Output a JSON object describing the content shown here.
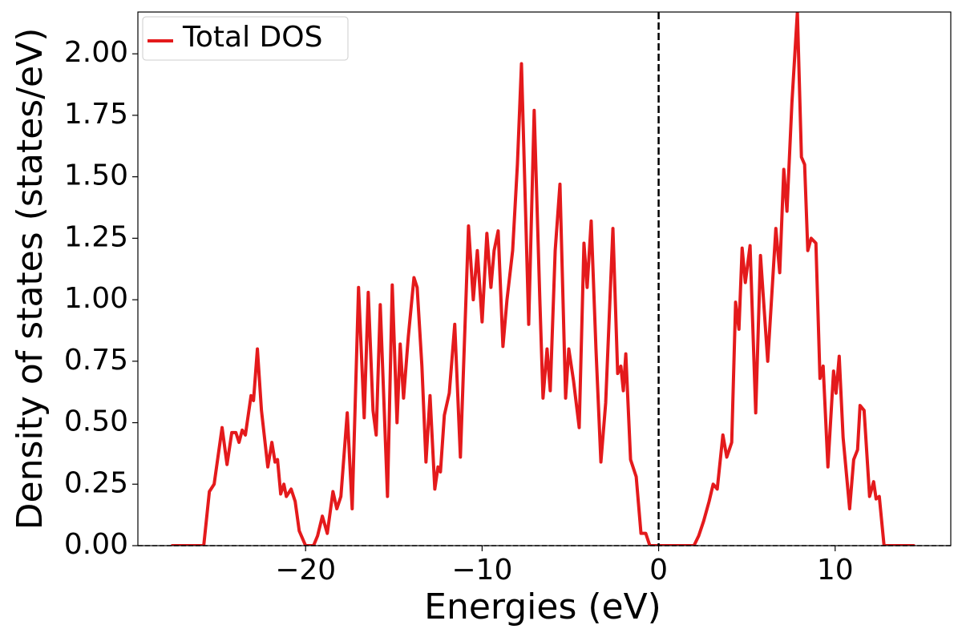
{
  "chart_data": {
    "type": "line",
    "xlabel": "Energies (eV)",
    "ylabel": "Density of states (states/eV)",
    "x": [
      -27.55,
      -25.77,
      -25.45,
      -25.18,
      -24.73,
      -24.45,
      -24.18,
      -23.95,
      -23.77,
      -23.59,
      -23.41,
      -23.09,
      -22.95,
      -22.73,
      -22.5,
      -22.14,
      -21.91,
      -21.73,
      -21.59,
      -21.41,
      -21.23,
      -21.09,
      -20.82,
      -20.59,
      -20.36,
      -20.0,
      -19.55,
      -19.32,
      -19.05,
      -18.77,
      -18.45,
      -18.23,
      -18.0,
      -17.64,
      -17.36,
      -17.0,
      -16.68,
      -16.45,
      -16.18,
      -16.0,
      -15.77,
      -15.36,
      -15.09,
      -14.82,
      -14.64,
      -14.45,
      -14.18,
      -13.86,
      -13.68,
      -13.41,
      -13.18,
      -12.95,
      -12.68,
      -12.5,
      -12.36,
      -12.14,
      -11.86,
      -11.55,
      -11.23,
      -10.77,
      -10.5,
      -10.27,
      -10.0,
      -9.73,
      -9.5,
      -9.32,
      -9.09,
      -8.82,
      -8.59,
      -8.27,
      -8.0,
      -7.77,
      -7.36,
      -7.05,
      -6.73,
      -6.55,
      -6.32,
      -6.14,
      -5.86,
      -5.59,
      -5.27,
      -5.09,
      -4.82,
      -4.5,
      -4.23,
      -4.05,
      -3.82,
      -3.55,
      -3.27,
      -3.0,
      -2.59,
      -2.32,
      -2.14,
      -2.0,
      -1.86,
      -1.59,
      -1.27,
      -1.0,
      -0.73,
      -0.5,
      2.0,
      2.27,
      2.55,
      2.86,
      3.09,
      3.32,
      3.64,
      3.86,
      4.14,
      4.36,
      4.55,
      4.73,
      4.91,
      5.18,
      5.5,
      5.77,
      6.18,
      6.36,
      6.64,
      6.86,
      7.09,
      7.27,
      7.55,
      7.86,
      8.09,
      8.27,
      8.45,
      8.64,
      8.91,
      9.14,
      9.32,
      9.59,
      9.91,
      10.05,
      10.23,
      10.45,
      10.82,
      11.05,
      11.27,
      11.41,
      11.64,
      11.95,
      12.18,
      12.32,
      12.5,
      12.77,
      14.45
    ],
    "series": [
      {
        "name": "Total DOS",
        "color": "#e41a1c",
        "values": [
          0,
          0,
          0.22,
          0.25,
          0.48,
          0.33,
          0.46,
          0.46,
          0.42,
          0.47,
          0.45,
          0.61,
          0.59,
          0.8,
          0.55,
          0.32,
          0.42,
          0.34,
          0.35,
          0.21,
          0.25,
          0.2,
          0.23,
          0.18,
          0.06,
          0,
          0,
          0.04,
          0.12,
          0.05,
          0.22,
          0.15,
          0.2,
          0.54,
          0.15,
          1.05,
          0.52,
          1.03,
          0.55,
          0.45,
          0.98,
          0.2,
          1.06,
          0.5,
          0.82,
          0.6,
          0.85,
          1.09,
          1.05,
          0.73,
          0.34,
          0.61,
          0.23,
          0.32,
          0.3,
          0.53,
          0.62,
          0.9,
          0.36,
          1.3,
          1.0,
          1.2,
          0.91,
          1.27,
          1.05,
          1.2,
          1.28,
          0.81,
          1.0,
          1.2,
          1.55,
          1.96,
          0.9,
          1.77,
          1.0,
          0.6,
          0.8,
          0.63,
          1.2,
          1.47,
          0.6,
          0.8,
          0.67,
          0.48,
          1.23,
          1.05,
          1.32,
          0.8,
          0.34,
          0.58,
          1.29,
          0.7,
          0.73,
          0.63,
          0.78,
          0.35,
          0.28,
          0.05,
          0.05,
          0,
          0,
          0.04,
          0.1,
          0.18,
          0.25,
          0.23,
          0.45,
          0.36,
          0.42,
          0.99,
          0.88,
          1.21,
          1.07,
          1.22,
          0.54,
          1.18,
          0.75,
          0.96,
          1.29,
          1.11,
          1.53,
          1.36,
          1.8,
          2.17,
          1.58,
          1.55,
          1.2,
          1.25,
          1.23,
          0.68,
          0.73,
          0.32,
          0.71,
          0.62,
          0.77,
          0.44,
          0.15,
          0.35,
          0.39,
          0.57,
          0.55,
          0.2,
          0.26,
          0.19,
          0.2,
          0,
          0
        ]
      }
    ],
    "xlim": [
      -29.5,
      16.55
    ],
    "ylim": [
      0,
      2.17
    ],
    "xticks": [
      {
        "value": -20,
        "label": "−20"
      },
      {
        "value": -10,
        "label": "−10"
      },
      0,
      10
    ],
    "yticks": [
      {
        "value": 0,
        "label": "0.00"
      },
      {
        "value": 0.25,
        "label": "0.25"
      },
      {
        "value": 0.5,
        "label": "0.50"
      },
      {
        "value": 0.75,
        "label": "0.75"
      },
      {
        "value": 1,
        "label": "1.00"
      },
      {
        "value": 1.25,
        "label": "1.25"
      },
      {
        "value": 1.5,
        "label": "1.50"
      },
      {
        "value": 1.75,
        "label": "1.75"
      },
      {
        "value": 2,
        "label": "2.00"
      }
    ],
    "vline": 0,
    "hline": 0,
    "legend": "upper left",
    "grid": false
  }
}
